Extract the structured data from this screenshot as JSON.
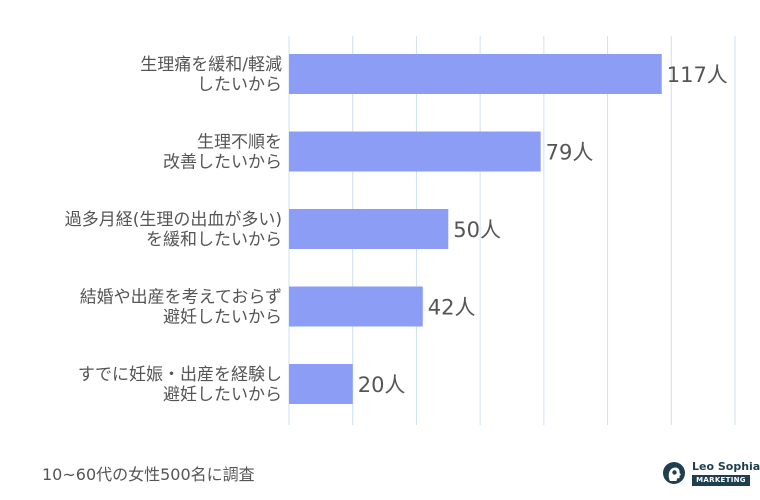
{
  "chart_data": {
    "type": "bar",
    "orientation": "horizontal",
    "categories": [
      [
        "生理痛を緩和/軽減",
        "したいから"
      ],
      [
        "生理不順を",
        "改善したいから"
      ],
      [
        "過多月経(生理の出血が多い)",
        "を緩和したいから"
      ],
      [
        "結婚や出産を考えておらず",
        "避妊したいから"
      ],
      [
        "すでに妊娠・出産を経験し",
        "避妊したいから"
      ]
    ],
    "values": [
      117,
      79,
      50,
      42,
      20
    ],
    "value_labels": [
      "117人",
      "79人",
      "50人",
      "42人",
      "20人"
    ],
    "unit": "人",
    "xlim": [
      0,
      140
    ],
    "grid": true,
    "bar_color": "#8b9df5",
    "grid_color": "#cfe0ef"
  },
  "footnote": "10~60代の女性500名に調査",
  "logo": {
    "name": "Leo Sophia",
    "tagline": "MARKETING",
    "color": "#1f3f4f",
    "icon": "head-silhouette-icon"
  }
}
